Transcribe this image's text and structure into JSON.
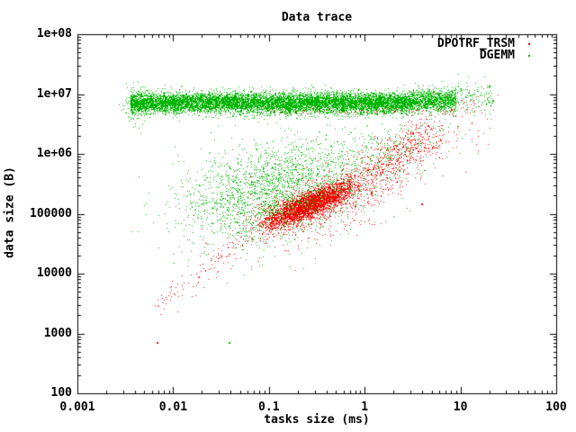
{
  "chart_data": {
    "type": "scatter",
    "title": "Data trace",
    "xlabel": "tasks size (ms)",
    "ylabel": "data size (B)",
    "xscale": "log",
    "yscale": "log",
    "xlim": [
      0.001,
      100
    ],
    "ylim": [
      100,
      100000000
    ],
    "x_ticks": [
      "0.001",
      "0.01",
      "0.1",
      "1",
      "10",
      "100"
    ],
    "y_ticks": [
      "100",
      "1000",
      "10000",
      "100000",
      "1e+06",
      "1e+07",
      "1e+08"
    ],
    "grid": false,
    "legend_position": "top-right-inside",
    "background": "#ffffff",
    "axis_color": "#000000",
    "marker_style": "dots",
    "series": [
      {
        "name": "DPOTRF_TRSM",
        "color": "#ff0000",
        "description": "diagonal correlated band from (0.007ms,3e3B) to (5ms,2e6B), dense core near (0.2ms,1.5e5B), plus sparse dots along lower edge of the 7e6B band",
        "clusters": [
          {
            "shape": "line",
            "n": 120,
            "x0": -2.17,
            "y0": 3.42,
            "x1": -1.12,
            "y1": 4.78,
            "s": 0.1,
            "sx": 0.06,
            "tdist": "uniform"
          },
          {
            "shape": "line",
            "n": 3400,
            "x0": -1.12,
            "y0": 4.78,
            "x1": -0.05,
            "y1": 5.52,
            "s": 0.105,
            "sx": 0.05,
            "tdist": "triangular"
          },
          {
            "shape": "blob",
            "n": 650,
            "cx": -0.52,
            "cy": 5.12,
            "sx": 0.4,
            "sy": 0.33,
            "rho": 0.5
          },
          {
            "shape": "line",
            "n": 600,
            "x0": -0.05,
            "y0": 5.52,
            "x1": 0.7,
            "y1": 6.33,
            "s": 0.2,
            "sx": 0.1,
            "tdist": "uniform"
          },
          {
            "shape": "blob",
            "n": 70,
            "cx": 0.78,
            "cy": 6.25,
            "sx": 0.28,
            "sy": 0.28,
            "rho": 0.4
          },
          {
            "shape": "band",
            "n": 110,
            "x0": -1.0,
            "x1": 0.95,
            "cy": 6.72,
            "sy": 0.035
          },
          {
            "shape": "blob",
            "n": 45,
            "cx": 1.02,
            "cy": 6.86,
            "sx": 0.2,
            "sy": 0.1,
            "rho": 0
          }
        ],
        "outliers": [
          [
            0.0067,
            710
          ],
          [
            3.9,
            150000
          ]
        ]
      },
      {
        "name": "DGEMM",
        "color": "#00b400",
        "description": "dense horizontal band near 7e6B from 0.004ms to 20ms, diffuse cloud centered near (0.12ms,2.5e5B)",
        "clusters": [
          {
            "shape": "band",
            "n": 9500,
            "x0": -2.45,
            "x1": 0.52,
            "cy": 6.86,
            "sy": 0.085
          },
          {
            "shape": "band",
            "n": 950,
            "x0": 0.52,
            "x1": 0.95,
            "cy": 6.9,
            "sy": 0.09
          },
          {
            "shape": "band",
            "n": 130,
            "x0": 0.95,
            "x1": 1.33,
            "cy": 6.93,
            "sy": 0.12
          },
          {
            "shape": "blob",
            "n": 150,
            "cx": -2.38,
            "cy": 6.82,
            "sx": 0.07,
            "sy": 0.16,
            "rho": 0
          },
          {
            "shape": "blob",
            "n": 2200,
            "cx": -0.93,
            "cy": 5.4,
            "sx": 0.48,
            "sy": 0.42,
            "rho": 0.35
          },
          {
            "shape": "blob",
            "n": 300,
            "cx": 0.2,
            "cy": 6.0,
            "sx": 0.35,
            "sy": 0.3,
            "rho": 0.5
          },
          {
            "shape": "blob",
            "n": 16,
            "cx": -1.35,
            "cy": 4.25,
            "sx": 0.3,
            "sy": 0.3,
            "rho": 0
          }
        ],
        "outliers": [
          [
            0.038,
            710
          ],
          [
            19.7,
            14000000
          ],
          [
            21.6,
            8100000
          ]
        ]
      }
    ]
  }
}
